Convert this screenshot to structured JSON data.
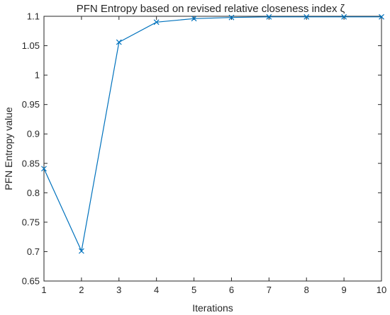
{
  "chart_data": {
    "type": "line",
    "title": "PFN Entropy based on revised relative closeness index ζ",
    "xlabel": "Iterations",
    "ylabel": "PFN Entropy value",
    "xlim": [
      1,
      10
    ],
    "ylim": [
      0.65,
      1.1
    ],
    "xticks": [
      "1",
      "2",
      "3",
      "4",
      "5",
      "6",
      "7",
      "8",
      "9",
      "10"
    ],
    "yticks": [
      "0.65",
      "0.7",
      "0.75",
      "0.8",
      "0.85",
      "0.9",
      "0.95",
      "1",
      "1.05",
      "1.1"
    ],
    "grid": false,
    "marker": "x",
    "line_color": "#0072BD",
    "series": [
      {
        "x": [
          1,
          2,
          3,
          4,
          5,
          6,
          7,
          8,
          9,
          10
        ],
        "values": [
          0.841,
          0.701,
          1.056,
          1.09,
          1.096,
          1.098,
          1.099,
          1.099,
          1.099,
          1.099
        ]
      }
    ]
  }
}
